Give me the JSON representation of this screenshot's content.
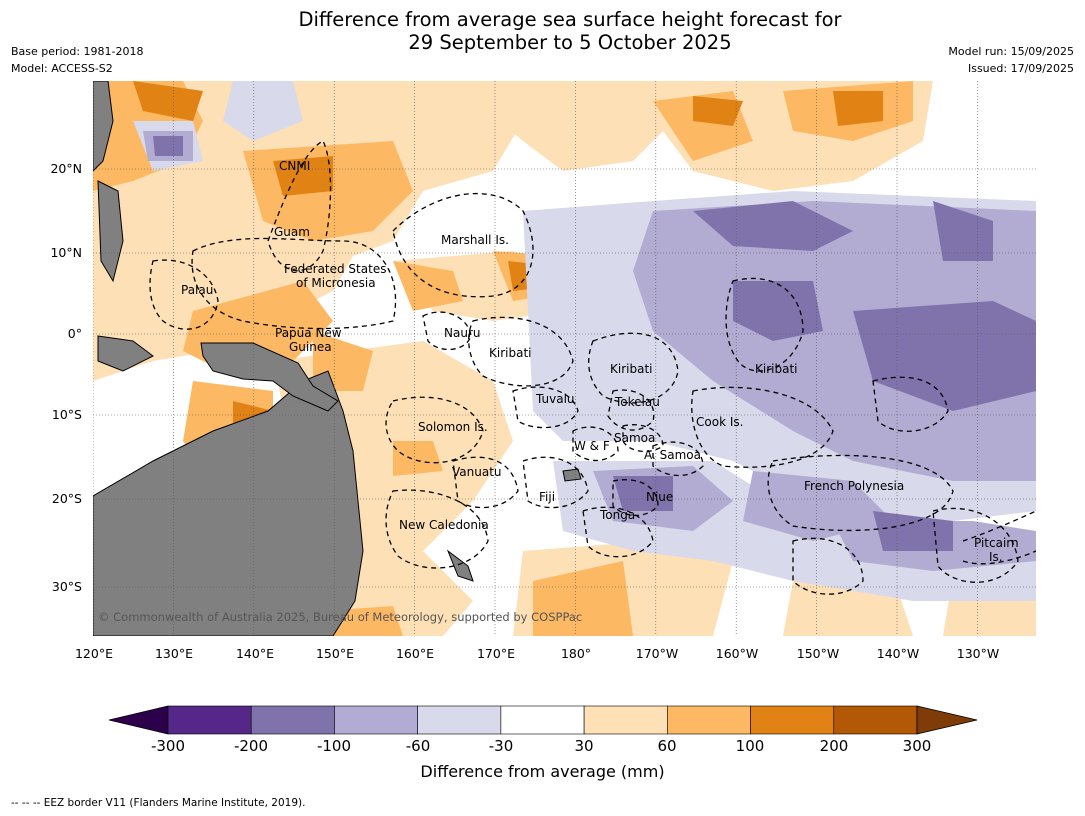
{
  "title_line1": "Difference from average sea surface height forecast for",
  "title_line2": "29 September to 5 October 2025",
  "meta_left": {
    "base_period": "Base period: 1981-2018",
    "model": "Model: ACCESS-S2"
  },
  "meta_right": {
    "model_run": "Model run: 15/09/2025",
    "issued": "Issued: 17/09/2025"
  },
  "lat_labels": [
    "20°N",
    "10°N",
    "0°",
    "10°S",
    "20°S",
    "30°S"
  ],
  "lon_labels": [
    "120°E",
    "130°E",
    "140°E",
    "150°E",
    "160°E",
    "170°E",
    "180°",
    "170°W",
    "160°W",
    "150°W",
    "140°W",
    "130°W"
  ],
  "countries": [
    "CNMI",
    "Guam",
    "Marshall Is.",
    "Federated States",
    "of Micronesia",
    "Palau",
    "Papua New",
    "Guinea",
    "Nauru",
    "Kiribati",
    "Kiribati",
    "Kiribati",
    "Tuvalu",
    "Tokelau",
    "Solomon Is.",
    "W & F",
    "Samoa",
    "A. Samoa",
    "Cook Is.",
    "Vanuatu",
    "Fiji",
    "Niue",
    "Tonga",
    "New Caledonia",
    "French Polynesia",
    "Pitcairn",
    "Is."
  ],
  "copyright": "© Commonwealth of Australia 2025, Bureau of Meteorology, supported by COSPPac",
  "colorbar": {
    "title": "Difference from average (mm)",
    "ticks": [
      "-300",
      "-200",
      "-100",
      "-60",
      "-30",
      "30",
      "60",
      "100",
      "200",
      "300"
    ],
    "colors": [
      "#2d004b",
      "#542788",
      "#8073ac",
      "#b2abd2",
      "#d8daeb",
      "#ffffff",
      "#fee0b6",
      "#fdb863",
      "#e08214",
      "#b35806",
      "#7f3b08"
    ]
  },
  "footer": "--  --  -- EEZ border V11 (Flanders Marine Institute, 2019)."
}
